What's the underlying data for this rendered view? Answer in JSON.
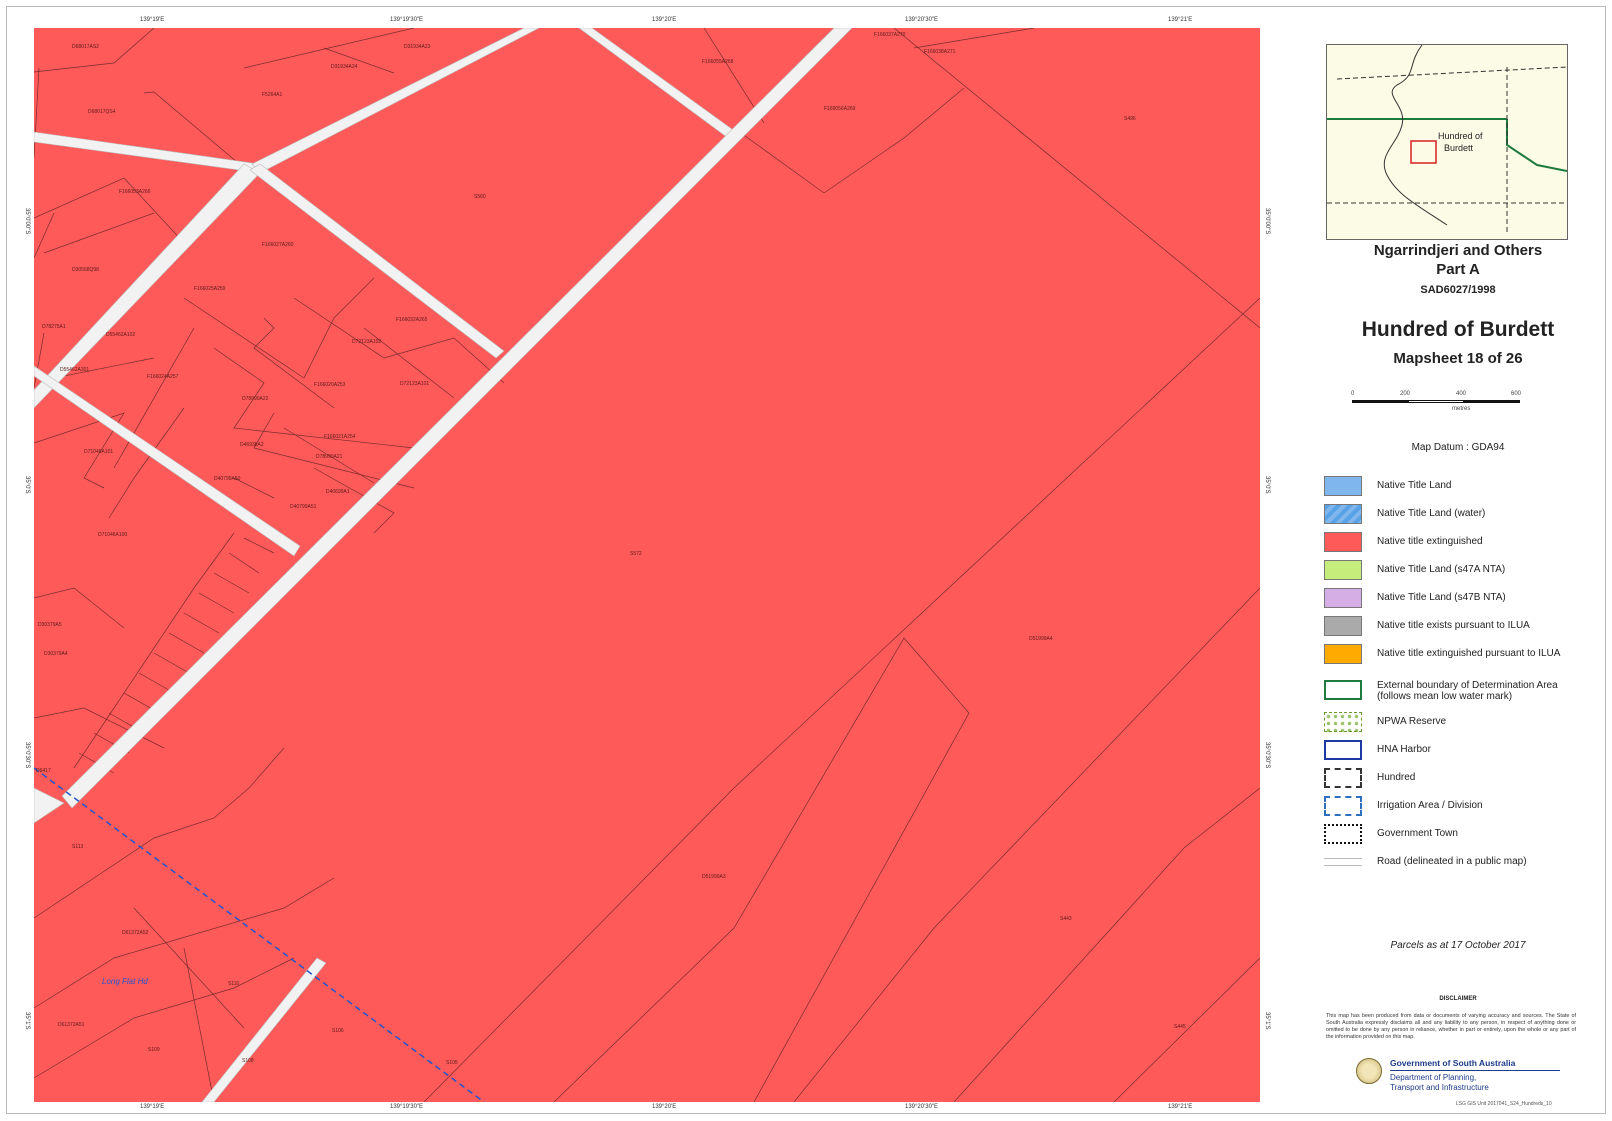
{
  "map": {
    "land_color": "#ff5a5a",
    "road_color": "#f2f2f2",
    "boundary_color": "#7a2b2b",
    "irrigation_color": "#2255cc",
    "longitude_labels": [
      "139°19'E",
      "139°19'30\"E",
      "139°20'E",
      "139°20'30\"E",
      "139°21'E"
    ],
    "latitude_labels": [
      "35°0'00\"S",
      "35°0'S",
      "35°0'30\"S",
      "35°1'S"
    ],
    "place_name": "Long Flat Hd",
    "parcels": [
      "D68017AS2",
      "D31934A23",
      "D31934A24",
      "F166055A268",
      "F166037A270",
      "F166038A271",
      "D68017QS4",
      "F5264A1",
      "F169056A269",
      "S496",
      "F166053A266",
      "S560",
      "D30568Q98",
      "F166027A260",
      "F166025A259",
      "F166032A265",
      "D55462A102",
      "D72123A102",
      "D78275A1",
      "D55462A301",
      "F166024A257",
      "F166020A253",
      "D72123A101",
      "D78990A22",
      "F166021A254",
      "D46938A2",
      "D78990A21",
      "D71046A101",
      "D40799A50",
      "D40699A1",
      "D40799A51",
      "D71046A100",
      "S572",
      "D30379A5",
      "D30379A4",
      "D51999A4",
      "D6417",
      "S113",
      "D51999A3",
      "D61372A52",
      "S443",
      "S110",
      "D61372A51",
      "S109",
      "S108",
      "S106",
      "S105",
      "S445"
    ]
  },
  "legend": {
    "inset_label": [
      "Hundred of",
      "Burdett"
    ],
    "title1": "Ngarrindjeri and Others",
    "title2": "Part A",
    "case_no": "SAD6027/1998",
    "hundred": "Hundred of Burdett",
    "mapsheet": "Mapsheet 18 of 26",
    "scale_ticks": [
      "0",
      "200",
      "400",
      "600"
    ],
    "scale_unit": "metres",
    "datum": "Map Datum : GDA94",
    "items": [
      {
        "label": "Native Title Land",
        "color": "#7fb6ee"
      },
      {
        "label": "Native Title Land (water)",
        "color": "#5aa2e6"
      },
      {
        "label": "Native title extinguished",
        "color": "#ff5a5a"
      },
      {
        "label": "Native Title Land (s47A NTA)",
        "color": "#c6ec7c"
      },
      {
        "label": "Native Title Land (s47B NTA)",
        "color": "#d6aee6"
      },
      {
        "label": "Native title exists pursuant to ILUA",
        "color": "#aaaaaa"
      },
      {
        "label": "Native title extinguished pursuant to ILUA",
        "color": "#ffaa00"
      }
    ],
    "boundary_items": [
      {
        "label": "External boundary of Determination Area",
        "label2": "(follows mean low water mark)"
      },
      {
        "label": "NPWA Reserve"
      },
      {
        "label": "HNA Harbor"
      },
      {
        "label": "Hundred"
      },
      {
        "label": "Irrigation Area / Division"
      },
      {
        "label": "Government Town"
      },
      {
        "label": "Road (delineated in a public map)"
      }
    ],
    "parcels_date": "Parcels as at 17 October 2017",
    "disclaimer_title": "DISCLAIMER",
    "disclaimer": "This map has been produced from data or documents of varying accuracy and sources. The State of South Australia expressly disclaims all and any liability to any person, in respect of anything done or omitted to be done by any person in reliance, whether in part or entirely, upon the whole or any part of the information provided on this map.",
    "gov1": "Government of South Australia",
    "gov2": "Department of Planning,",
    "gov3": "Transport and Infrastructure",
    "footer": "LSG GIS Unit 2017041_S24_Hundreds_10"
  }
}
